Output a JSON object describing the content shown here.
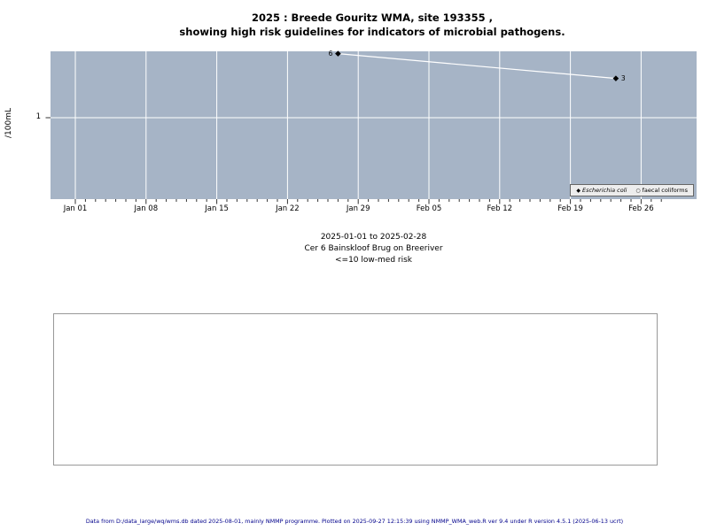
{
  "title": {
    "line1": "2025 : Breede Gouritz WMA, site 193355 ,",
    "line2": "showing high risk guidelines for indicators of microbial pathogens."
  },
  "chart_data": {
    "type": "line",
    "title": "2025 : Breede Gouritz WMA, site 193355 , showing high risk guidelines for indicators of microbial pathogens.",
    "xlabel": "",
    "ylabel": "/100mL",
    "y_scale": "log10",
    "y_tick_labels": [
      "1"
    ],
    "y_tick_values": [
      1
    ],
    "x_tick_labels": [
      "Jan 01",
      "Jan 08",
      "Jan 15",
      "Jan 22",
      "Jan 29",
      "Feb 05",
      "Feb 12",
      "Feb 19",
      "Feb 26"
    ],
    "x_tick_days": [
      0,
      7,
      14,
      21,
      28,
      35,
      42,
      49,
      56
    ],
    "x_minor_tick_day_max": 58,
    "x_range": [
      "2025-01-01",
      "2025-02-28"
    ],
    "grid": "on",
    "legend_position": "bottom-right-inside",
    "plot_bg": "#a6b4c6",
    "grid_color": "#ffffff",
    "line_color": "#ffffff",
    "marker_color": "#000000",
    "series": [
      {
        "name": "Escherichia coli",
        "marker": "filled-diamond",
        "points": [
          {
            "day": 26,
            "value": 6,
            "label": "6",
            "label_side": "left"
          },
          {
            "day": 53.5,
            "value": 3,
            "label": "3",
            "label_side": "right"
          }
        ]
      },
      {
        "name": "faecal coliforms",
        "marker": "open-circle",
        "points": []
      }
    ]
  },
  "legend": {
    "items": [
      {
        "glyph": "◆",
        "label": "Escherichia coli",
        "italic": true
      },
      {
        "glyph": "○",
        "label": "faecal coliforms",
        "italic": false
      }
    ]
  },
  "captions": {
    "line1": "2025-01-01 to 2025-02-28",
    "line2": "Cer 6 Bainskloof Brug on Breeriver",
    "line3": "<=10 low-med risk"
  },
  "footer": "Data from D:/data_large/wq/wms.db dated 2025-08-01, mainly NMMP programme. Plotted on 2025-09-27 12:15:39 using NMMP_WMA_web.R ver 9.4 under R version 4.5.1 (2025-06-13 ucrt)"
}
